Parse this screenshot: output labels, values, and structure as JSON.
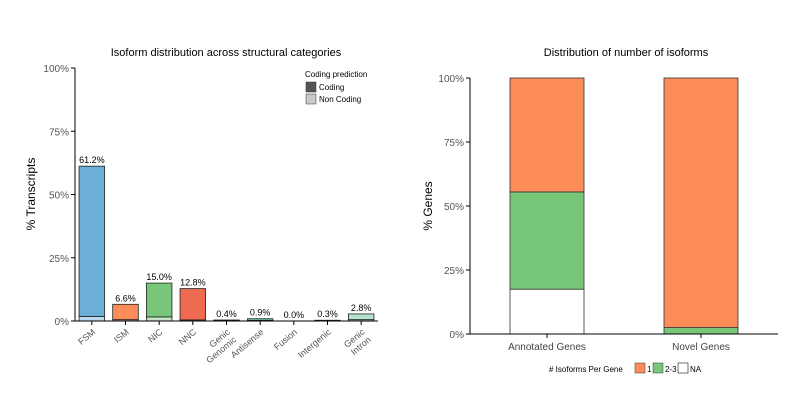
{
  "chart_data": [
    {
      "type": "bar",
      "title": "Isoform distribution across structural categories",
      "ylabel": "% Transcripts",
      "xlabel": "",
      "ylim": [
        0,
        100
      ],
      "yticks": [
        "0%",
        "25%",
        "50%",
        "75%",
        "100%"
      ],
      "categories": [
        [
          "FSM"
        ],
        [
          "ISM"
        ],
        [
          "NIC"
        ],
        [
          "NNC"
        ],
        [
          "Genic",
          "Genomic"
        ],
        [
          "Antisense"
        ],
        [
          "Fusion"
        ],
        [
          "Intergenic"
        ],
        [
          "Genic",
          "Intron"
        ]
      ],
      "values": [
        61.2,
        6.6,
        15.0,
        12.8,
        0.4,
        0.9,
        0.0,
        0.3,
        2.8
      ],
      "value_labels": [
        "61.2%",
        "6.6%",
        "15.0%",
        "12.8%",
        "0.4%",
        "0.9%",
        "0.0%",
        "0.3%",
        "2.8%"
      ],
      "non_coding_values": [
        1.8,
        0.5,
        1.6,
        0.4,
        0.1,
        0.2,
        0.0,
        0.1,
        0.5
      ],
      "bar_colors": [
        "#6baed6",
        "#fc8d59",
        "#78c679",
        "#ee6a50",
        "#969696",
        "#66c2a4",
        "#daa520",
        "#e9967a",
        "#b3e2cd"
      ],
      "legend": {
        "title": "Coding prediction",
        "placement": "top-right",
        "items": [
          {
            "label": "Coding",
            "color": "#555555"
          },
          {
            "label": "Non Coding",
            "color": "#c8c8c8"
          }
        ]
      },
      "grid": false
    },
    {
      "type": "bar",
      "stacked": true,
      "title": "Distribution of number of isoforms",
      "ylabel": "% Genes",
      "xlabel": "",
      "ylim": [
        0,
        100
      ],
      "yticks": [
        "0%",
        "25%",
        "50%",
        "75%",
        "100%"
      ],
      "categories": [
        "Annotated Genes",
        "Novel Genes"
      ],
      "series": [
        {
          "name": "NA",
          "color": "#ffffff",
          "values": [
            17.5,
            0
          ]
        },
        {
          "name": "2-3",
          "color": "#78c679",
          "values": [
            38.0,
            2.5
          ]
        },
        {
          "name": "1",
          "color": "#fc8d59",
          "values": [
            44.5,
            97.5
          ]
        }
      ],
      "legend": {
        "title": "# Isoforms Per Gene",
        "placement": "bottom",
        "items": [
          {
            "label": "1",
            "color": "#fc8d59"
          },
          {
            "label": "2-3",
            "color": "#78c679"
          },
          {
            "label": "NA",
            "color": "#ffffff"
          }
        ]
      },
      "grid": false
    }
  ]
}
